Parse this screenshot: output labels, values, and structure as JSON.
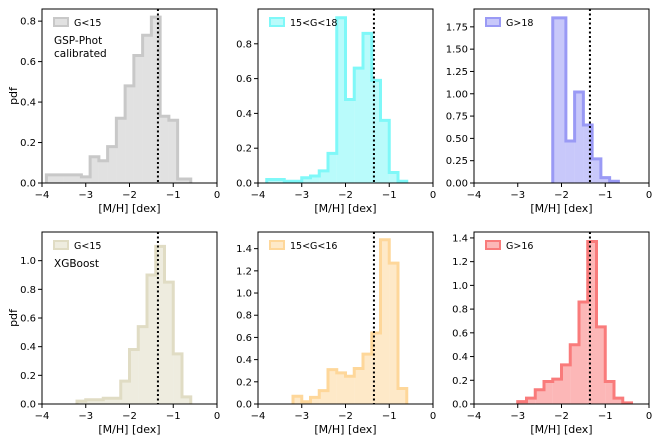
{
  "chart_data": [
    {
      "type": "bar",
      "histogram": true,
      "legend": "G<15",
      "annotation": [
        "GSP-Phot",
        "calibrated"
      ],
      "color": "#c8c8c8",
      "xlabel": "[M/H] [dex]",
      "ylabel": "pdf",
      "xlim": [
        -4,
        0
      ],
      "ylim": [
        0,
        0.86
      ],
      "xticks": [
        -4,
        -3,
        -2,
        -1,
        0
      ],
      "yticks": [
        0.0,
        0.2,
        0.4,
        0.6,
        0.8
      ],
      "ytick_labels": [
        "0.0",
        "0.2",
        "0.4",
        "0.6",
        "0.8"
      ],
      "bin_edges": [
        -3.9,
        -3.5,
        -3.1,
        -2.9,
        -2.7,
        -2.5,
        -2.3,
        -2.1,
        -1.9,
        -1.7,
        -1.5,
        -1.3,
        -1.1,
        -0.9,
        -0.6
      ],
      "values": [
        0.04,
        0.04,
        0.03,
        0.13,
        0.11,
        0.18,
        0.32,
        0.48,
        0.63,
        0.73,
        0.82,
        0.33,
        0.31,
        0.02
      ],
      "vline": -1.35,
      "legend_position": "top-left"
    },
    {
      "type": "bar",
      "histogram": true,
      "legend": "15<G<18",
      "color": "#7ff8f8",
      "xlabel": "[M/H] [dex]",
      "ylabel": "",
      "xlim": [
        -4,
        0
      ],
      "ylim": [
        0,
        1.0
      ],
      "xticks": [
        -4,
        -3,
        -2,
        -1,
        0
      ],
      "yticks": [
        0.0,
        0.2,
        0.4,
        0.6,
        0.8
      ],
      "ytick_labels": [
        "0.0",
        "0.2",
        "0.4",
        "0.6",
        "0.8"
      ],
      "bin_edges": [
        -3.8,
        -3.4,
        -3.0,
        -2.8,
        -2.6,
        -2.4,
        -2.2,
        -2.0,
        -1.8,
        -1.6,
        -1.4,
        -1.2,
        -1.0,
        -0.8,
        -0.6
      ],
      "values": [
        0.02,
        0.01,
        0.03,
        0.04,
        0.07,
        0.17,
        0.95,
        0.48,
        0.66,
        0.86,
        0.59,
        0.36,
        0.06,
        0.01
      ],
      "vline": -1.35,
      "legend_position": "top-left"
    },
    {
      "type": "bar",
      "histogram": true,
      "legend": "G>18",
      "color": "#9a9af5",
      "xlabel": "[M/H] [dex]",
      "ylabel": "",
      "xlim": [
        -4,
        0
      ],
      "ylim": [
        0,
        1.95
      ],
      "xticks": [
        -4,
        -3,
        -2,
        -1,
        0
      ],
      "yticks": [
        0.0,
        0.25,
        0.5,
        0.75,
        1.0,
        1.25,
        1.5,
        1.75
      ],
      "ytick_labels": [
        "0.00",
        "0.25",
        "0.50",
        "0.75",
        "1.00",
        "1.25",
        "1.50",
        "1.75"
      ],
      "bin_edges": [
        -2.2,
        -1.9,
        -1.7,
        -1.5,
        -1.3,
        -1.1,
        -0.9,
        -0.7
      ],
      "values": [
        1.85,
        0.47,
        1.02,
        0.65,
        0.27,
        0.06,
        0.02
      ],
      "vline": -1.35,
      "legend_position": "top-left"
    },
    {
      "type": "bar",
      "histogram": true,
      "legend": "G<15",
      "annotation": [
        "XGBoost"
      ],
      "color": "#e0dcc4",
      "xlabel": "[M/H] [dex]",
      "ylabel": "pdf",
      "xlim": [
        -4,
        0
      ],
      "ylim": [
        0,
        1.2
      ],
      "xticks": [
        -4,
        -3,
        -2,
        -1,
        0
      ],
      "yticks": [
        0.0,
        0.2,
        0.4,
        0.6,
        0.8,
        1.0
      ],
      "ytick_labels": [
        "0.0",
        "0.2",
        "0.4",
        "0.6",
        "0.8",
        "1.0"
      ],
      "bin_edges": [
        -3.2,
        -3.0,
        -2.6,
        -2.2,
        -2.0,
        -1.8,
        -1.6,
        -1.4,
        -1.2,
        -1.0,
        -0.8,
        -0.6
      ],
      "values": [
        0.02,
        0.03,
        0.04,
        0.16,
        0.38,
        0.54,
        0.9,
        1.1,
        0.85,
        0.35,
        0.05
      ],
      "vline": -1.35,
      "legend_position": "top-left"
    },
    {
      "type": "bar",
      "histogram": true,
      "legend": "15<G<16",
      "color": "#fed79a",
      "xlabel": "[M/H] [dex]",
      "ylabel": "",
      "xlim": [
        -4,
        0
      ],
      "ylim": [
        0,
        1.55
      ],
      "xticks": [
        -4,
        -3,
        -2,
        -1,
        0
      ],
      "yticks": [
        0.0,
        0.2,
        0.4,
        0.6,
        0.8,
        1.0,
        1.2,
        1.4
      ],
      "ytick_labels": [
        "0.0",
        "0.2",
        "0.4",
        "0.6",
        "0.8",
        "1.0",
        "1.2",
        "1.4"
      ],
      "bin_edges": [
        -3.2,
        -3.0,
        -2.8,
        -2.6,
        -2.4,
        -2.2,
        -2.0,
        -1.8,
        -1.6,
        -1.4,
        -1.2,
        -1.0,
        -0.8,
        -0.6
      ],
      "values": [
        0.07,
        0.02,
        0.06,
        0.12,
        0.31,
        0.28,
        0.25,
        0.32,
        0.45,
        0.64,
        1.48,
        1.27,
        0.14
      ],
      "vline": -1.35,
      "legend_position": "top-left"
    },
    {
      "type": "bar",
      "histogram": true,
      "legend": "G>16",
      "color": "#f97b7b",
      "xlabel": "[M/H] [dex]",
      "ylabel": "",
      "xlim": [
        -4,
        0
      ],
      "ylim": [
        0,
        1.45
      ],
      "xticks": [
        -4,
        -3,
        -2,
        -1,
        0
      ],
      "yticks": [
        0.0,
        0.2,
        0.4,
        0.6,
        0.8,
        1.0,
        1.2,
        1.4
      ],
      "ytick_labels": [
        "0.0",
        "0.2",
        "0.4",
        "0.6",
        "0.8",
        "1.0",
        "1.2",
        "1.4"
      ],
      "bin_edges": [
        -3.0,
        -2.8,
        -2.6,
        -2.4,
        -2.2,
        -2.0,
        -1.8,
        -1.6,
        -1.4,
        -1.2,
        -1.0,
        -0.8,
        -0.6,
        -0.4
      ],
      "values": [
        0.02,
        0.05,
        0.12,
        0.19,
        0.21,
        0.33,
        0.5,
        0.86,
        1.37,
        0.65,
        0.19,
        0.05,
        0.01
      ],
      "vline": -1.35,
      "legend_position": "top-left"
    }
  ]
}
